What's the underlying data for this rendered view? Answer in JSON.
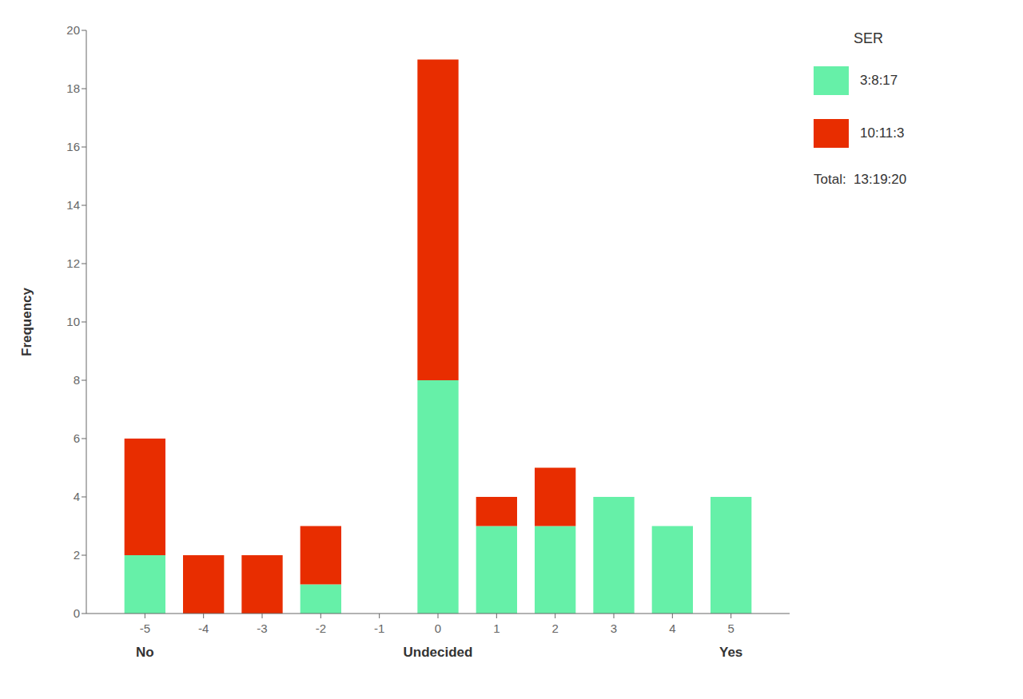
{
  "chart_data": {
    "type": "bar",
    "stacked": true,
    "x": [
      -5,
      -4,
      -3,
      -2,
      -1,
      0,
      1,
      2,
      3,
      4,
      5
    ],
    "xlim": [
      -6,
      6
    ],
    "xticks": [
      -5,
      -4,
      -3,
      -2,
      -1,
      0,
      1,
      2,
      3,
      4,
      5
    ],
    "ylim": [
      0,
      20
    ],
    "yticks": [
      0,
      2,
      4,
      6,
      8,
      10,
      12,
      14,
      16,
      18,
      20
    ],
    "ylabel": "Frequency",
    "grid": false,
    "legend": "right",
    "legend_title": "SER",
    "series": [
      {
        "name": "3:8:17",
        "color": "#66f0a8",
        "values": [
          2,
          0,
          0,
          1,
          0,
          8,
          3,
          3,
          4,
          3,
          4
        ]
      },
      {
        "name": "10:11:3",
        "color": "#e82d00",
        "values": [
          4,
          2,
          2,
          2,
          0,
          11,
          1,
          2,
          0,
          0,
          0
        ]
      }
    ],
    "annotations": [
      {
        "text": "No",
        "x": -5
      },
      {
        "text": "Undecided",
        "x": 0
      },
      {
        "text": "Yes",
        "x": 5
      },
      {
        "text": "Total:  13:19:20"
      }
    ]
  }
}
